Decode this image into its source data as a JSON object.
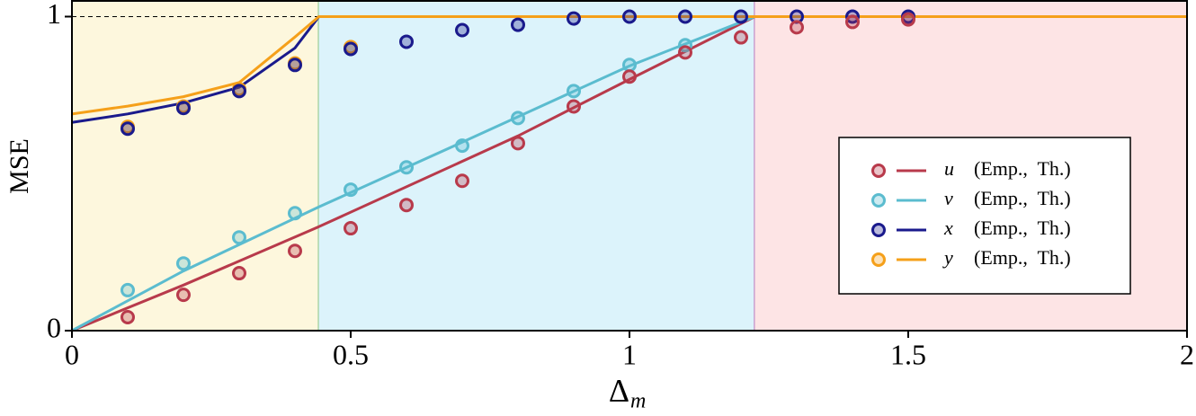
{
  "chart_data": {
    "type": "line",
    "ylabel": "MSE",
    "xlabel": "Δ",
    "xlabel_subscript": "m",
    "xlim": [
      0,
      2
    ],
    "ylim": [
      0,
      1.05
    ],
    "xticks": [
      0,
      0.5,
      1,
      1.5,
      2
    ],
    "yticks": [
      0,
      1
    ],
    "regions": [
      {
        "xlim": [
          0,
          0.443
        ],
        "color": "#fdf7dd",
        "edge_color": "#9fcf9c"
      },
      {
        "xlim": [
          0.443,
          1.225
        ],
        "color": "#dcf3fb",
        "edge_color": "#c48fc8"
      },
      {
        "xlim": [
          1.225,
          2
        ],
        "color": "#fde4e5",
        "edge_color": "#fde4e5"
      }
    ],
    "legend_note": "(Emp.,  Th.)",
    "legend_position": "center right",
    "series": [
      {
        "name": "u",
        "color": "#b83a4b",
        "emp_x": [
          0.1,
          0.2,
          0.3,
          0.4,
          0.5,
          0.6,
          0.7,
          0.8,
          0.9,
          1.0,
          1.1,
          1.2,
          1.3,
          1.4,
          1.5
        ],
        "emp_values": [
          0.043,
          0.114,
          0.183,
          0.254,
          0.326,
          0.4,
          0.477,
          0.597,
          0.714,
          0.809,
          0.886,
          0.934,
          0.966,
          0.983,
          0.991
        ],
        "th_x": [
          0,
          0.2,
          0.443,
          0.8,
          1.0,
          1.225,
          2
        ],
        "th_values": [
          0,
          0.145,
          0.331,
          0.62,
          0.8,
          1,
          1
        ]
      },
      {
        "name": "v",
        "color": "#5bbccf",
        "emp_x": [
          0.1,
          0.2,
          0.3,
          0.4,
          0.5,
          0.6,
          0.7,
          0.8,
          0.9,
          1.0,
          1.1
        ],
        "emp_values": [
          0.129,
          0.214,
          0.297,
          0.374,
          0.449,
          0.52,
          0.589,
          0.677,
          0.763,
          0.846,
          0.909
        ],
        "th_x": [
          0,
          0.2,
          0.443,
          0.7,
          1.0,
          1.225,
          2
        ],
        "th_values": [
          0,
          0.19,
          0.394,
          0.6,
          0.843,
          1,
          1
        ]
      },
      {
        "name": "x",
        "color": "#1a1a8c",
        "emp_x": [
          0.1,
          0.2,
          0.3,
          0.4,
          0.5,
          0.6,
          0.7,
          0.8,
          0.9,
          1.0,
          1.1,
          1.2,
          1.3,
          1.4,
          1.5
        ],
        "emp_values": [
          0.643,
          0.709,
          0.763,
          0.846,
          0.897,
          0.92,
          0.957,
          0.974,
          0.994,
          1,
          1,
          1,
          1,
          1,
          1
        ],
        "th_x": [
          0,
          0.1,
          0.2,
          0.3,
          0.4,
          0.443,
          2
        ],
        "th_values": [
          0.663,
          0.69,
          0.725,
          0.775,
          0.9,
          1,
          1
        ]
      },
      {
        "name": "y",
        "color": "#f5a01a",
        "emp_x": [
          0.1,
          0.2,
          0.3,
          0.4,
          0.5
        ],
        "emp_values": [
          0.649,
          0.714,
          0.769,
          0.851,
          0.903
        ],
        "th_x": [
          0,
          0.1,
          0.2,
          0.3,
          0.4,
          0.443,
          2
        ],
        "th_values": [
          0.69,
          0.715,
          0.745,
          0.79,
          0.935,
          1,
          1
        ]
      }
    ]
  }
}
